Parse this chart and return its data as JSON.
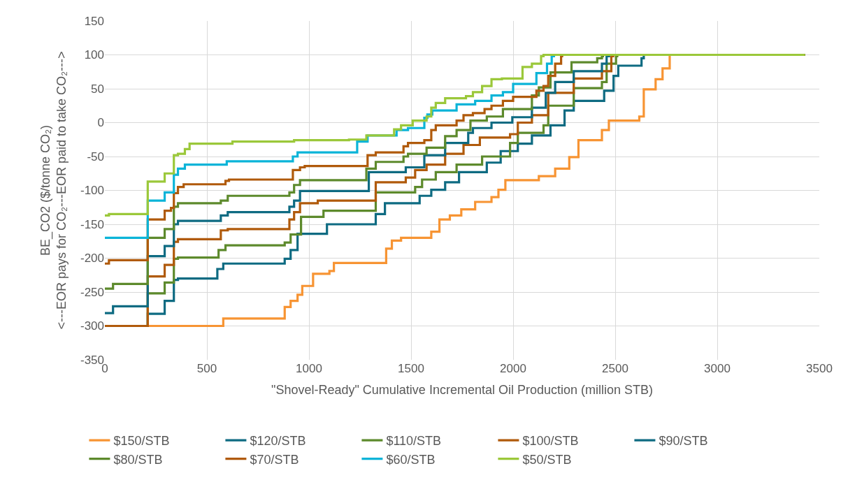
{
  "chart_data": {
    "type": "step",
    "xlabel": "\"Shovel-Ready\" Cumulative Incremental Oil Production (million STB)",
    "ylabel": "BE_CO2 ($/tonne CO₂)\n<---EOR pays for CO₂---EOR paid to take CO₂--->",
    "xlim": [
      0,
      3500
    ],
    "xticks": [
      0,
      500,
      1000,
      1500,
      2000,
      2500,
      3000,
      3500
    ],
    "ylim": [
      -350,
      150
    ],
    "yticks": [
      -350,
      -300,
      -250,
      -200,
      -150,
      -100,
      -50,
      0,
      50,
      100,
      150
    ],
    "grid": true,
    "legend": "bottom",
    "marker": "none",
    "line_style": "solid",
    "series": [
      {
        "name": "$150/STB",
        "color": "#f79433",
        "x": [
          0,
          580,
          881,
          910,
          944,
          967,
          1020,
          1100,
          1122,
          1378,
          1406,
          1451,
          1599,
          1639,
          1690,
          1746,
          1814,
          1894,
          1928,
          1962,
          2126,
          2206,
          2275,
          2320,
          2435,
          2469,
          2618,
          2640,
          2698,
          2732,
          2767,
          3430
        ],
        "values": [
          -300,
          -289,
          -272,
          -263,
          -254,
          -241,
          -223,
          -219,
          -207,
          -186,
          -174,
          -170,
          -161,
          -143,
          -137,
          -128,
          -117,
          -110,
          -99,
          -85,
          -79,
          -68,
          -51,
          -26,
          -11,
          3,
          9,
          49,
          64,
          80,
          100,
          100
        ]
      },
      {
        "name": "$120/STB",
        "color": "#0e6b82",
        "x": [
          0,
          210,
          293,
          338,
          358,
          551,
          580,
          881,
          910,
          944,
          1088,
          1327,
          1372,
          1542,
          1599,
          1667,
          1735,
          1871,
          1939,
          2023,
          2092,
          2183,
          2252,
          2297,
          2446,
          2492,
          2515,
          2629,
          2640,
          3430
        ],
        "values": [
          -300,
          -282,
          -263,
          -232,
          -230,
          -216,
          -208,
          -201,
          -188,
          -164,
          -150,
          -135,
          -119,
          -108,
          -99,
          -88,
          -73,
          -59,
          -42,
          -31,
          -19,
          -4,
          18,
          32,
          47,
          69,
          84,
          95,
          100,
          100
        ]
      },
      {
        "name": "$110/STB",
        "color": "#5d8a2c",
        "x": [
          0,
          210,
          293,
          338,
          358,
          557,
          591,
          881,
          910,
          961,
          1071,
          1327,
          1520,
          1554,
          1621,
          1723,
          1848,
          1985,
          2023,
          2149,
          2172,
          2297,
          2435,
          2458,
          2504,
          2510,
          3430
        ],
        "values": [
          -300,
          -252,
          -236,
          -201,
          -199,
          -188,
          -181,
          -177,
          -165,
          -139,
          -130,
          -103,
          -95,
          -84,
          -73,
          -62,
          -50,
          -30,
          -15,
          -4,
          25,
          51,
          60,
          87,
          98,
          100,
          100
        ]
      },
      {
        "name": "$100/STB",
        "color": "#b05a0b",
        "x": [
          0,
          210,
          293,
          338,
          358,
          568,
          602,
          904,
          927,
          956,
          1043,
          1327,
          1474,
          1520,
          1576,
          1667,
          1757,
          1837,
          1985,
          2023,
          2092,
          2172,
          2297,
          2435,
          2481,
          2490,
          3430
        ],
        "values": [
          -300,
          -227,
          -210,
          -176,
          -172,
          -159,
          -157,
          -143,
          -132,
          -119,
          -115,
          -88,
          -81,
          -70,
          -62,
          -46,
          -33,
          -22,
          -17,
          0,
          11,
          44,
          65,
          76,
          98,
          100,
          100
        ]
      },
      {
        "name": "$90/STB",
        "color": "#0e6b82",
        "x": [
          0,
          40,
          210,
          293,
          338,
          358,
          568,
          602,
          904,
          927,
          956,
          1293,
          1474,
          1565,
          1667,
          1780,
          1803,
          1894,
          1996,
          2092,
          2160,
          2206,
          2297,
          2435,
          2458,
          2470,
          3430
        ],
        "values": [
          -281,
          -271,
          -197,
          -182,
          -150,
          -145,
          -137,
          -132,
          -124,
          -115,
          -101,
          -73,
          -66,
          -48,
          -30,
          -15,
          -8,
          0,
          8,
          22,
          44,
          60,
          76,
          87,
          98,
          100,
          100
        ]
      },
      {
        "name": "$80/STB",
        "color": "#5d8a2c",
        "x": [
          0,
          40,
          210,
          293,
          338,
          358,
          568,
          602,
          904,
          927,
          956,
          1281,
          1327,
          1463,
          1485,
          1576,
          1667,
          1723,
          1791,
          1871,
          1950,
          2092,
          2126,
          2183,
          2286,
          2412,
          2435,
          2440,
          3430
        ],
        "values": [
          -245,
          -238,
          -170,
          -157,
          -124,
          -119,
          -115,
          -108,
          -103,
          -92,
          -85,
          -68,
          -58,
          -50,
          -46,
          -37,
          -20,
          -11,
          3,
          9,
          20,
          40,
          52,
          74,
          89,
          95,
          98,
          100,
          100
        ]
      },
      {
        "name": "$70/STB",
        "color": "#b05a0b",
        "x": [
          0,
          20,
          210,
          293,
          324,
          338,
          358,
          386,
          591,
          608,
          921,
          956,
          979,
          1287,
          1327,
          1463,
          1485,
          1565,
          1599,
          1621,
          1723,
          1757,
          1803,
          1860,
          1894,
          1950,
          2000,
          2114,
          2149,
          2172,
          2206,
          2235,
          2240,
          3430
        ],
        "values": [
          -208,
          -203,
          -143,
          -130,
          -126,
          -104,
          -95,
          -91,
          -86,
          -84,
          -70,
          -66,
          -64,
          -48,
          -44,
          -35,
          -30,
          -26,
          -11,
          -4,
          3,
          11,
          14,
          20,
          25,
          32,
          38,
          47,
          54,
          69,
          87,
          98,
          100,
          100
        ]
      },
      {
        "name": "$60/STB",
        "color": "#0bb4d8",
        "x": [
          0,
          210,
          293,
          338,
          358,
          392,
          597,
          921,
          944,
          1236,
          1287,
          1429,
          1485,
          1565,
          1580,
          1604,
          1723,
          1814,
          1894,
          1950,
          2000,
          2114,
          2166,
          2189,
          2200
        ],
        "values": [
          -170,
          -115,
          -103,
          -77,
          -68,
          -62,
          -57,
          -50,
          -44,
          -28,
          -19,
          -11,
          -8,
          7,
          12,
          18,
          27,
          32,
          40,
          45,
          57,
          73,
          87,
          98,
          100
        ]
      },
      {
        "name": "$50/STB",
        "color": "#9bc83a",
        "x": [
          0,
          20,
          210,
          293,
          338,
          358,
          392,
          415,
          625,
          927,
          1196,
          1281,
          1417,
          1451,
          1508,
          1576,
          1599,
          1621,
          1667,
          1769,
          1803,
          1848,
          1894,
          1945,
          2046,
          2092,
          2137,
          2149,
          3430
        ],
        "values": [
          -137,
          -135,
          -87,
          -75,
          -48,
          -46,
          -39,
          -31,
          -28,
          -26,
          -25,
          -19,
          -10,
          -4,
          3,
          9,
          22,
          29,
          36,
          39,
          45,
          54,
          64,
          65,
          82,
          87,
          98,
          100,
          100
        ]
      }
    ]
  }
}
